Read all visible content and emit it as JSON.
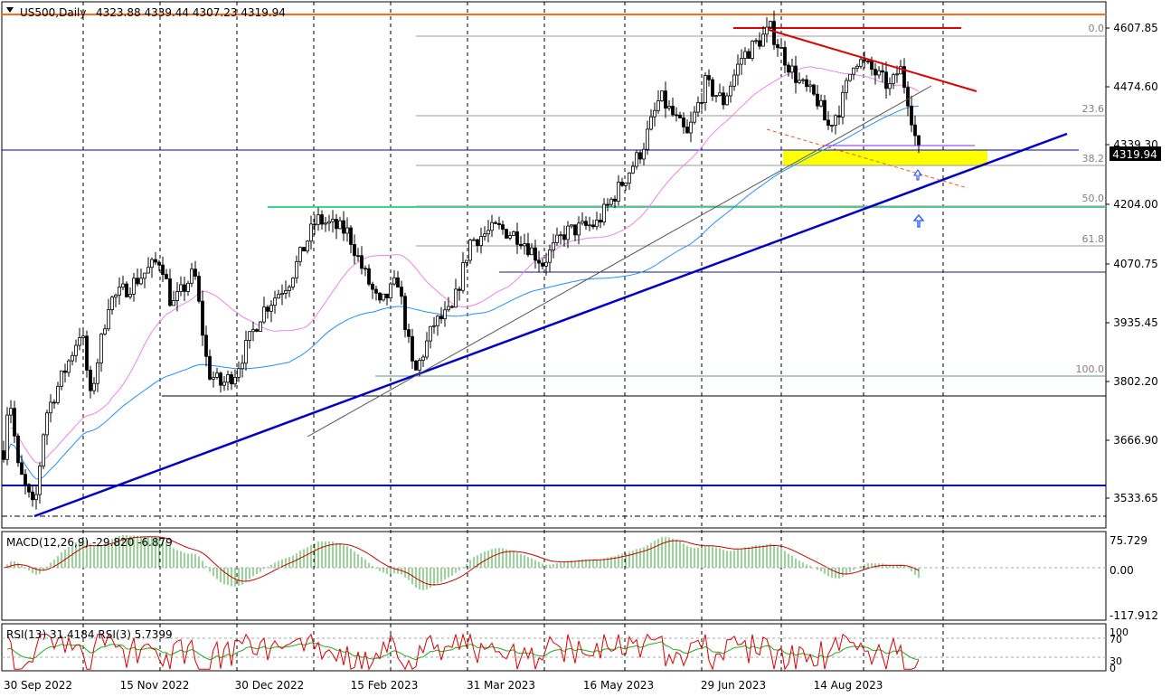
{
  "header": {
    "symbol": "US500,Daily",
    "ohlc": "4323.88 4339.44 4307.23 4319.94"
  },
  "price_axis": {
    "ticks": [
      "4607.85",
      "4474.60",
      "4339.30",
      "4204.00",
      "4070.75",
      "3935.45",
      "3802.20",
      "3666.90",
      "3533.65"
    ],
    "current_price": "4319.94"
  },
  "fib_levels": [
    "0.0",
    "23.6",
    "38.2",
    "50.0",
    "61.8",
    "100.0"
  ],
  "macd": {
    "label": "MACD(12,26,9) -29.820 -6.879",
    "ticks": [
      "75.729",
      "0.00",
      "-117.912"
    ]
  },
  "rsi": {
    "label": "RSI(13) 31.4184  RSI(3) 5.7399",
    "ticks": [
      "100",
      "70",
      "30",
      "0"
    ]
  },
  "time_axis": {
    "labels": [
      "30 Sep 2022",
      "15 Nov 2022",
      "30 Dec 2022",
      "15 Feb 2023",
      "31 Mar 2023",
      "16 May 2023",
      "29 Jun 2023",
      "14 Aug 2023"
    ]
  },
  "colors": {
    "bull": "#0a7a0a",
    "bear": "#b00000",
    "trendline": "#0000c8",
    "resistance": "#e00000",
    "zone": "#ffff00",
    "ma_fast": "#ee82ee",
    "ma_slow": "#1e90ff",
    "fib": "#808080",
    "hline_top": "#ff6a1a",
    "hline_mid": "#3cd68c"
  },
  "chart_data": {
    "type": "candlestick",
    "symbol": "US500",
    "timeframe": "Daily",
    "last_bar": {
      "open": 4323.88,
      "high": 4339.44,
      "low": 4307.23,
      "close": 4319.94
    },
    "ylim": [
      3490,
      4660
    ],
    "x_range": [
      "2022-09-30",
      "2023-09-22"
    ],
    "key_points": [
      {
        "date": "2022-10-13",
        "price": 3492
      },
      {
        "date": "2023-03-13",
        "price": 3808
      },
      {
        "date": "2023-07-27",
        "price": 4607.85
      },
      {
        "date": "2023-09-21",
        "price": 4319.94
      }
    ],
    "fib_prices": {
      "0.0": 4607.85,
      "23.6": 4419,
      "38.2": 4302,
      "50.0": 4208,
      "61.8": 4113,
      "100.0": 3808
    },
    "horizontal_levels": [
      4659,
      4330,
      4208,
      4051,
      3790,
      3556,
      3500
    ]
  }
}
